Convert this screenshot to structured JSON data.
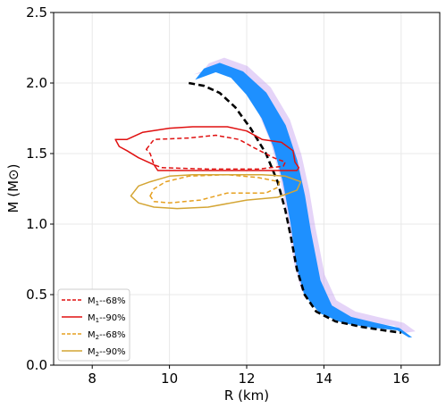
{
  "chart_data": {
    "type": "line",
    "title": "",
    "xlabel": "R (km)",
    "ylabel": "M (M⊙)",
    "xlim": [
      7,
      17
    ],
    "ylim": [
      0,
      2.5
    ],
    "xticks": [
      8,
      10,
      12,
      14,
      16
    ],
    "xtick_labels": [
      "8",
      "10",
      "12",
      "14",
      "16"
    ],
    "yticks": [
      0,
      0.5,
      1.0,
      1.5,
      2.0,
      2.5
    ],
    "ytick_labels": [
      "0.0",
      "0.5",
      "1.0",
      "1.5",
      "2.0",
      "2.5"
    ],
    "grid": true,
    "legend_position": "lower-left",
    "band": {
      "color": "#1e90ff",
      "outer_color": "#c5a0f0",
      "left": [
        [
          10.7,
          2.03
        ],
        [
          11.2,
          2.08
        ],
        [
          11.6,
          2.04
        ],
        [
          12.0,
          1.92
        ],
        [
          12.4,
          1.75
        ],
        [
          12.7,
          1.55
        ],
        [
          12.95,
          1.3
        ],
        [
          13.15,
          1.0
        ],
        [
          13.3,
          0.7
        ],
        [
          13.5,
          0.5
        ],
        [
          13.9,
          0.37
        ],
        [
          14.5,
          0.3
        ],
        [
          15.2,
          0.27
        ],
        [
          15.9,
          0.25
        ],
        [
          16.2,
          0.2
        ]
      ],
      "right": [
        [
          16.25,
          0.2
        ],
        [
          15.95,
          0.26
        ],
        [
          15.3,
          0.3
        ],
        [
          14.7,
          0.34
        ],
        [
          14.2,
          0.42
        ],
        [
          13.9,
          0.6
        ],
        [
          13.65,
          0.95
        ],
        [
          13.5,
          1.2
        ],
        [
          13.3,
          1.45
        ],
        [
          13.0,
          1.7
        ],
        [
          12.5,
          1.93
        ],
        [
          11.9,
          2.08
        ],
        [
          11.3,
          2.14
        ],
        [
          10.9,
          2.1
        ],
        [
          10.7,
          2.03
        ]
      ]
    },
    "series": [
      {
        "kind": "curve",
        "color": "#000000",
        "dash": "dashed",
        "points": [
          [
            10.5,
            2.0
          ],
          [
            10.9,
            1.98
          ],
          [
            11.3,
            1.93
          ],
          [
            11.7,
            1.83
          ],
          [
            12.1,
            1.68
          ],
          [
            12.5,
            1.5
          ],
          [
            12.8,
            1.3
          ],
          [
            13.0,
            1.1
          ],
          [
            13.15,
            0.9
          ],
          [
            13.3,
            0.68
          ],
          [
            13.5,
            0.5
          ],
          [
            13.8,
            0.38
          ],
          [
            14.3,
            0.31
          ],
          [
            15.0,
            0.27
          ],
          [
            15.6,
            0.245
          ],
          [
            16.0,
            0.23
          ]
        ]
      },
      {
        "name": "M1--68%",
        "name_main": "M",
        "name_sub": "1",
        "name_rest": "--68%",
        "kind": "contour",
        "color": "#e01010",
        "dash": "dashed",
        "points": [
          [
            9.4,
            1.53
          ],
          [
            9.6,
            1.6
          ],
          [
            10.5,
            1.61
          ],
          [
            11.2,
            1.63
          ],
          [
            11.8,
            1.6
          ],
          [
            12.2,
            1.54
          ],
          [
            12.7,
            1.47
          ],
          [
            13.0,
            1.44
          ],
          [
            12.95,
            1.41
          ],
          [
            12.3,
            1.39
          ],
          [
            11.0,
            1.39
          ],
          [
            9.8,
            1.4
          ],
          [
            9.6,
            1.42
          ],
          [
            9.5,
            1.5
          ],
          [
            9.4,
            1.53
          ]
        ]
      },
      {
        "name": "M1--90%",
        "name_main": "M",
        "name_sub": "1",
        "name_rest": "--90%",
        "kind": "contour",
        "color": "#e01010",
        "dash": "solid",
        "points": [
          [
            8.6,
            1.6
          ],
          [
            8.9,
            1.6
          ],
          [
            9.3,
            1.65
          ],
          [
            10.0,
            1.68
          ],
          [
            10.6,
            1.69
          ],
          [
            11.5,
            1.69
          ],
          [
            12.0,
            1.66
          ],
          [
            12.4,
            1.6
          ],
          [
            12.9,
            1.58
          ],
          [
            13.2,
            1.52
          ],
          [
            13.25,
            1.44
          ],
          [
            13.35,
            1.4
          ],
          [
            13.3,
            1.38
          ],
          [
            12.0,
            1.38
          ],
          [
            10.5,
            1.38
          ],
          [
            9.7,
            1.38
          ],
          [
            9.6,
            1.42
          ],
          [
            9.2,
            1.47
          ],
          [
            8.9,
            1.52
          ],
          [
            8.7,
            1.55
          ],
          [
            8.6,
            1.6
          ]
        ]
      },
      {
        "name": "M2--68%",
        "name_main": "M",
        "name_sub": "2",
        "name_rest": "--68%",
        "kind": "contour",
        "color": "#e6a020",
        "dash": "dashed",
        "points": [
          [
            9.5,
            1.2
          ],
          [
            9.6,
            1.25
          ],
          [
            9.9,
            1.3
          ],
          [
            10.5,
            1.34
          ],
          [
            11.5,
            1.35
          ],
          [
            12.3,
            1.33
          ],
          [
            12.85,
            1.3
          ],
          [
            12.8,
            1.26
          ],
          [
            12.5,
            1.22
          ],
          [
            11.5,
            1.22
          ],
          [
            10.8,
            1.17
          ],
          [
            10.0,
            1.15
          ],
          [
            9.6,
            1.16
          ],
          [
            9.5,
            1.2
          ]
        ]
      },
      {
        "name": "M2--90%",
        "name_main": "M",
        "name_sub": "2",
        "name_rest": "--90%",
        "kind": "contour",
        "color": "#d4a534",
        "dash": "solid",
        "points": [
          [
            9.0,
            1.2
          ],
          [
            9.2,
            1.27
          ],
          [
            9.5,
            1.3
          ],
          [
            10.0,
            1.34
          ],
          [
            10.6,
            1.35
          ],
          [
            11.5,
            1.35
          ],
          [
            12.4,
            1.35
          ],
          [
            13.0,
            1.34
          ],
          [
            13.4,
            1.3
          ],
          [
            13.3,
            1.24
          ],
          [
            12.8,
            1.19
          ],
          [
            12.0,
            1.17
          ],
          [
            11.0,
            1.12
          ],
          [
            10.2,
            1.11
          ],
          [
            9.6,
            1.12
          ],
          [
            9.2,
            1.15
          ],
          [
            9.0,
            1.2
          ]
        ]
      }
    ]
  }
}
